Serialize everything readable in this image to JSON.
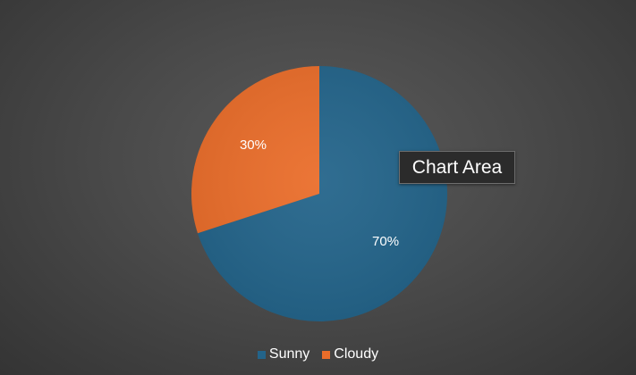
{
  "tooltip": {
    "text": "Chart Area"
  },
  "chart_data": {
    "type": "pie",
    "title": "",
    "categories": [
      "Sunny",
      "Cloudy"
    ],
    "values": [
      70,
      30
    ],
    "labels": [
      "70%",
      "30%"
    ],
    "colors": [
      "#23648a",
      "#ea6d2a"
    ],
    "legend_position": "bottom",
    "start_angle_deg": 0,
    "direction": "clockwise"
  }
}
